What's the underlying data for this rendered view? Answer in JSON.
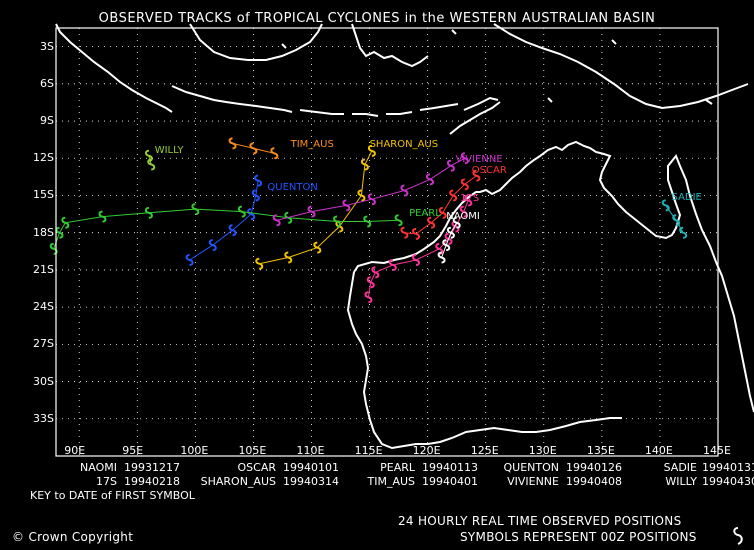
{
  "title": "OBSERVED TRACKS of TROPICAL CYCLONES in the WESTERN AUSTRALIAN BASIN",
  "lat_labels": [
    "3S",
    "6S",
    "9S",
    "12S",
    "15S",
    "18S",
    "21S",
    "24S",
    "27S",
    "30S",
    "33S"
  ],
  "lon_labels": [
    "90E",
    "95E",
    "100E",
    "105E",
    "110E",
    "115E",
    "120E",
    "125E",
    "130E",
    "135E",
    "140E",
    "145E"
  ],
  "key_rows": [
    [
      {
        "name": "NAOMI",
        "date": "19931217"
      },
      {
        "name": "OSCAR",
        "date": "19940101"
      },
      {
        "name": "PEARL",
        "date": "19940113"
      },
      {
        "name": "QUENTON",
        "date": "19940126"
      },
      {
        "name": "SADIE",
        "date": "19940131"
      }
    ],
    [
      {
        "name": "17S",
        "date": "19940218"
      },
      {
        "name": "SHARON_AUS",
        "date": "19940314"
      },
      {
        "name": "TIM_AUS",
        "date": "19940401"
      },
      {
        "name": "VIVIENNE",
        "date": "19940408"
      },
      {
        "name": "WILLY",
        "date": "19940430"
      }
    ]
  ],
  "key_caption": "KEY to DATE of FIRST SYMBOL",
  "copyright": "Crown Copyright",
  "note_line1": "24 HOURLY REAL TIME OBSERVED POSITIONS",
  "note_line2": "SYMBOLS REPRESENT 00Z POSITIONS",
  "map_extent": {
    "lon_min": 88,
    "lon_max": 145,
    "lat_min": -36,
    "lat_max": -1.5,
    "grid_step": 3
  },
  "storms": [
    {
      "name": "WILLY",
      "color": "#9ACD32",
      "label_lonlat": [
        96.5,
        -11.4
      ],
      "track": [
        [
          96.2,
          -12.5
        ],
        [
          96.0,
          -11.8
        ]
      ]
    },
    {
      "name": "TIM_AUS",
      "color": "#FF8C1A",
      "label_lonlat": [
        108.2,
        -10.9
      ],
      "track": [
        [
          103.2,
          -10.8
        ],
        [
          105.0,
          -11.2
        ],
        [
          106.8,
          -11.6
        ]
      ]
    },
    {
      "name": "QUENTON",
      "color": "#2255FF",
      "label_lonlat": [
        106.2,
        -14.4
      ],
      "track": [
        [
          99.5,
          -20.2
        ],
        [
          101.5,
          -19.0
        ],
        [
          103.2,
          -17.8
        ],
        [
          104.8,
          -16.5
        ],
        [
          105.2,
          -15.0
        ],
        [
          105.4,
          -13.8
        ]
      ]
    },
    {
      "name": "SHARON_AUS",
      "color": "#F5C400",
      "label_lonlat": [
        115.0,
        -10.9
      ],
      "track": [
        [
          105.5,
          -20.5
        ],
        [
          108.0,
          -20.0
        ],
        [
          110.5,
          -19.2
        ],
        [
          112.4,
          -17.5
        ],
        [
          114.3,
          -15.0
        ],
        [
          114.6,
          -12.5
        ],
        [
          115.2,
          -11.4
        ]
      ]
    },
    {
      "name": "PEARL",
      "color": "#33CC33",
      "label_lonlat": [
        118.4,
        -16.5
      ],
      "track": [
        [
          87.8,
          -19.3
        ],
        [
          88.3,
          -18.0
        ],
        [
          88.8,
          -17.2
        ],
        [
          92.0,
          -16.7
        ],
        [
          96.0,
          -16.4
        ],
        [
          100.0,
          -16.1
        ],
        [
          104.0,
          -16.3
        ],
        [
          108.0,
          -16.8
        ],
        [
          112.2,
          -17.1
        ],
        [
          114.8,
          -17.1
        ],
        [
          117.5,
          -17.0
        ]
      ]
    },
    {
      "name": "VIVIENNE",
      "color": "#CC33CC",
      "label_lonlat": [
        122.4,
        -12.1
      ],
      "track": [
        [
          107.0,
          -17.0
        ],
        [
          110.0,
          -16.3
        ],
        [
          113.0,
          -15.8
        ],
        [
          115.2,
          -15.3
        ],
        [
          118.0,
          -14.6
        ],
        [
          120.2,
          -13.7
        ],
        [
          122.0,
          -12.6
        ],
        [
          123.2,
          -12.0
        ]
      ]
    },
    {
      "name": "OSCAR",
      "color": "#FF3333",
      "label_lonlat": [
        123.8,
        -13.0
      ],
      "track": [
        [
          118.0,
          -18.0
        ],
        [
          119.0,
          -18.1
        ],
        [
          120.3,
          -17.2
        ],
        [
          121.3,
          -16.4
        ],
        [
          122.2,
          -15.0
        ],
        [
          123.2,
          -14.1
        ],
        [
          124.2,
          -13.4
        ]
      ]
    },
    {
      "name": "17S",
      "color": "#FF3399",
      "label_lonlat": [
        122.8,
        -15.3
      ],
      "track": [
        [
          114.9,
          -23.2
        ],
        [
          115.1,
          -22.0
        ],
        [
          115.5,
          -21.2
        ],
        [
          117.0,
          -20.6
        ],
        [
          119.0,
          -20.2
        ],
        [
          121.0,
          -19.3
        ],
        [
          121.8,
          -18.5
        ],
        [
          122.4,
          -17.5
        ],
        [
          123.1,
          -16.3
        ],
        [
          123.5,
          -15.4
        ]
      ]
    },
    {
      "name": "NAOMI",
      "color": "#FFFFFF",
      "label_lonlat": [
        121.6,
        -16.7
      ],
      "track": [
        [
          121.2,
          -20.0
        ],
        [
          121.6,
          -19.0
        ],
        [
          122.0,
          -18.0
        ],
        [
          122.5,
          -17.2
        ]
      ]
    },
    {
      "name": "SADIE",
      "color": "#1FB0B8",
      "label_lonlat": [
        141.0,
        -15.2
      ],
      "track": [
        [
          140.5,
          -15.8
        ],
        [
          141.4,
          -17.0
        ],
        [
          142.0,
          -18.0
        ]
      ]
    }
  ]
}
